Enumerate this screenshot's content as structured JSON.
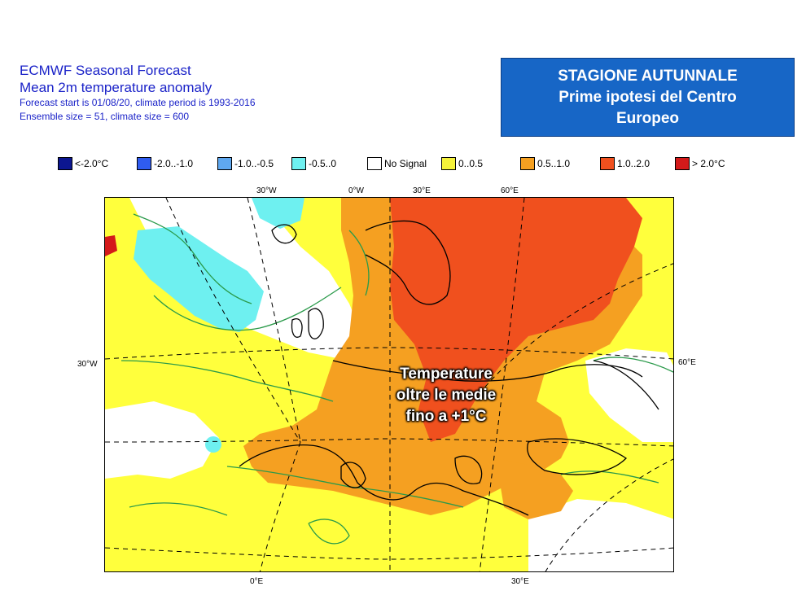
{
  "header": {
    "line1": "ECMWF Seasonal Forecast",
    "line2": "Mean 2m temperature anomaly",
    "line3": "Forecast start is 01/08/20, climate period is 1993-2016",
    "line4": "Ensemble size = 51, climate size = 600"
  },
  "banner": {
    "line1": "STAGIONE AUTUNNALE",
    "line2": "Prime ipotesi del Centro",
    "line3": "Europeo"
  },
  "legend": [
    {
      "label": "<-2.0°C",
      "color": "#0c1690"
    },
    {
      "label": "-2.0..-1.0",
      "color": "#2f5cf0"
    },
    {
      "label": "-1.0..-0.5",
      "color": "#5fa8f0"
    },
    {
      "label": "-0.5..0",
      "color": "#6ef0f0"
    },
    {
      "label": "No Signal",
      "color": "#ffffff"
    },
    {
      "label": "0..0.5",
      "color": "#f5f23a"
    },
    {
      "label": "0.5..1.0",
      "color": "#f5a021"
    },
    {
      "label": "1.0..2.0",
      "color": "#f0501e"
    },
    {
      "label": "> 2.0°C",
      "color": "#d41a1a"
    }
  ],
  "axes": {
    "top_lon": [
      "30°W",
      "0°W",
      "30°E",
      "60°E"
    ],
    "bottom_lon": [
      "0°E",
      "30°E"
    ],
    "left_lat": "30°W",
    "right_lat": "60°E"
  },
  "overlay": {
    "line1": "Temperature",
    "line2": "oltre le medie",
    "line3": "fino a +1°C"
  }
}
